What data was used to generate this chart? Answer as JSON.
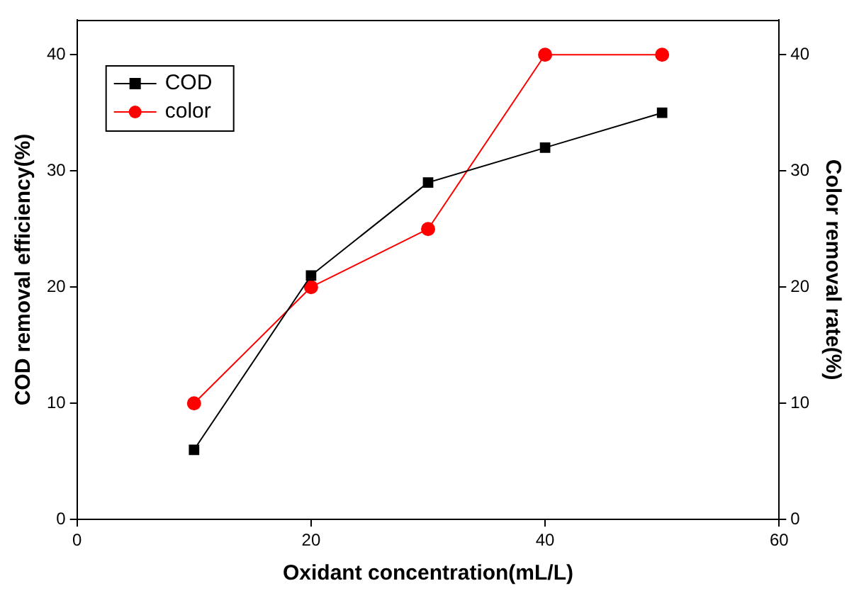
{
  "chart_data": {
    "type": "line",
    "xlabel": "Oxidant concentration(mL/L)",
    "ylabel": "COD removal efficiency(%)",
    "y2label": "Color removal rate(%)",
    "x": [
      10,
      20,
      30,
      40,
      50
    ],
    "series": [
      {
        "name": "COD",
        "color": "#000000",
        "marker": "square",
        "values": [
          6,
          21,
          29,
          32,
          35
        ]
      },
      {
        "name": "color",
        "color": "#ff0000",
        "marker": "circle",
        "axis": "y2",
        "values": [
          10,
          20,
          25,
          40,
          40
        ]
      }
    ],
    "xlim": [
      0,
      60
    ],
    "xticks": [
      0,
      20,
      40,
      60
    ],
    "ylim": [
      0,
      43
    ],
    "yticks": [
      0,
      10,
      20,
      30,
      40
    ],
    "y2lim": [
      0,
      43
    ],
    "y2ticks": [
      0,
      10,
      20,
      30,
      40
    ],
    "grid": false,
    "legend": "top left"
  }
}
